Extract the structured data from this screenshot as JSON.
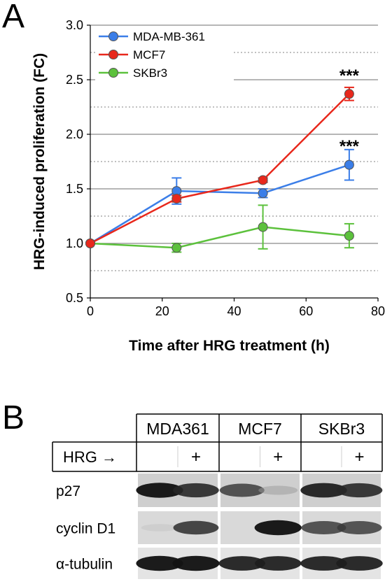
{
  "panel_a": {
    "label": "A",
    "chart_data": {
      "type": "line",
      "xlabel": "Time after HRG treatment (h)",
      "ylabel": "HRG-induced proliferation (FC)",
      "xlim": [
        0,
        80
      ],
      "ylim": [
        0.5,
        3.0
      ],
      "x_ticks": [
        "0",
        "20",
        "40",
        "60",
        "80"
      ],
      "y_ticks": [
        "0.5",
        "1.0",
        "1.5",
        "2.0",
        "2.5",
        "3.0"
      ],
      "grid": "horizontal solid at major ticks, dotted at minor ticks",
      "legend_position": "top-left",
      "series": [
        {
          "name": "MDA-MB-361",
          "color": "#3b7ee8",
          "x": [
            0,
            24,
            48,
            72
          ],
          "y": [
            1.0,
            1.48,
            1.46,
            1.72
          ],
          "err": [
            0,
            0.12,
            0.04,
            0.14
          ]
        },
        {
          "name": "MCF7",
          "color": "#e8281c",
          "x": [
            0,
            24,
            48,
            72
          ],
          "y": [
            1.0,
            1.41,
            1.58,
            2.37
          ],
          "err": [
            0,
            0.03,
            0.02,
            0.06
          ]
        },
        {
          "name": "SKBr3",
          "color": "#5cc13c",
          "x": [
            0,
            24,
            48,
            72
          ],
          "y": [
            1.0,
            0.96,
            1.15,
            1.07
          ],
          "err": [
            0,
            0.04,
            0.2,
            0.11
          ]
        }
      ],
      "annotations": [
        {
          "text": "***",
          "x": 72,
          "y": 2.54
        },
        {
          "text": "***",
          "x": 72,
          "y": 1.89
        }
      ]
    }
  },
  "panel_b": {
    "label": "B",
    "cell_lines": [
      "MDA361",
      "MCF7",
      "SKBr3"
    ],
    "treatment_label": "HRG →",
    "treatment_marks": [
      "",
      "+",
      "",
      "+",
      "",
      "+"
    ],
    "rows": [
      {
        "label": "p27",
        "intensity": [
          0.95,
          0.85,
          0.75,
          0.25,
          0.9,
          0.85
        ]
      },
      {
        "label": "cyclin D1",
        "intensity": [
          0.05,
          0.8,
          0.0,
          0.95,
          0.75,
          0.75
        ]
      },
      {
        "label": "α-tubulin",
        "intensity": [
          0.95,
          0.95,
          0.9,
          0.9,
          0.9,
          0.9
        ]
      }
    ]
  }
}
